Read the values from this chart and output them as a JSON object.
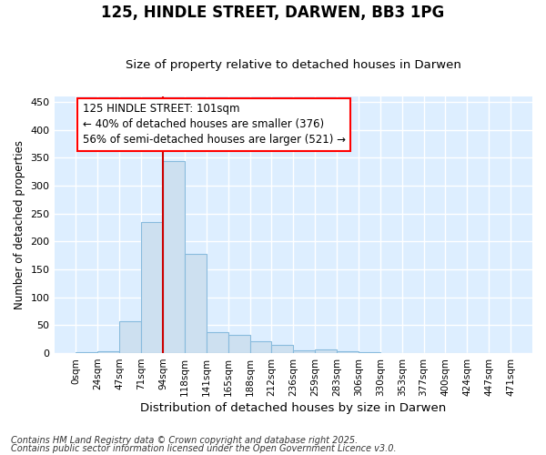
{
  "title": "125, HINDLE STREET, DARWEN, BB3 1PG",
  "subtitle": "Size of property relative to detached houses in Darwen",
  "xlabel": "Distribution of detached houses by size in Darwen",
  "ylabel": "Number of detached properties",
  "footnote1": "Contains HM Land Registry data © Crown copyright and database right 2025.",
  "footnote2": "Contains public sector information licensed under the Open Government Licence v3.0.",
  "annotation_title": "125 HINDLE STREET: 101sqm",
  "annotation_line1": "← 40% of detached houses are smaller (376)",
  "annotation_line2": "56% of semi-detached houses are larger (521) →",
  "bar_color": "#cde0f0",
  "bar_edge_color": "#88bbdd",
  "vline_color": "#cc0000",
  "vline_x": 4.0,
  "plot_bg_color": "#ddeeff",
  "fig_bg_color": "#ffffff",
  "bin_labels": [
    "0sqm",
    "24sqm",
    "47sqm",
    "71sqm",
    "94sqm",
    "118sqm",
    "141sqm",
    "165sqm",
    "188sqm",
    "212sqm",
    "236sqm",
    "259sqm",
    "283sqm",
    "306sqm",
    "330sqm",
    "353sqm",
    "377sqm",
    "400sqm",
    "424sqm",
    "447sqm",
    "471sqm"
  ],
  "bar_values": [
    2,
    3,
    57,
    235,
    345,
    178,
    38,
    33,
    22,
    15,
    5,
    6,
    3,
    1,
    0,
    0,
    0,
    0,
    0,
    0
  ],
  "ylim": [
    0,
    460
  ],
  "yticks": [
    0,
    50,
    100,
    150,
    200,
    250,
    300,
    350,
    400,
    450
  ],
  "title_fontsize": 12,
  "subtitle_fontsize": 9.5,
  "annotation_fontsize": 8.5,
  "ylabel_fontsize": 8.5,
  "xlabel_fontsize": 9.5,
  "tick_fontsize": 8,
  "xtick_fontsize": 7.5,
  "footnote_fontsize": 7
}
